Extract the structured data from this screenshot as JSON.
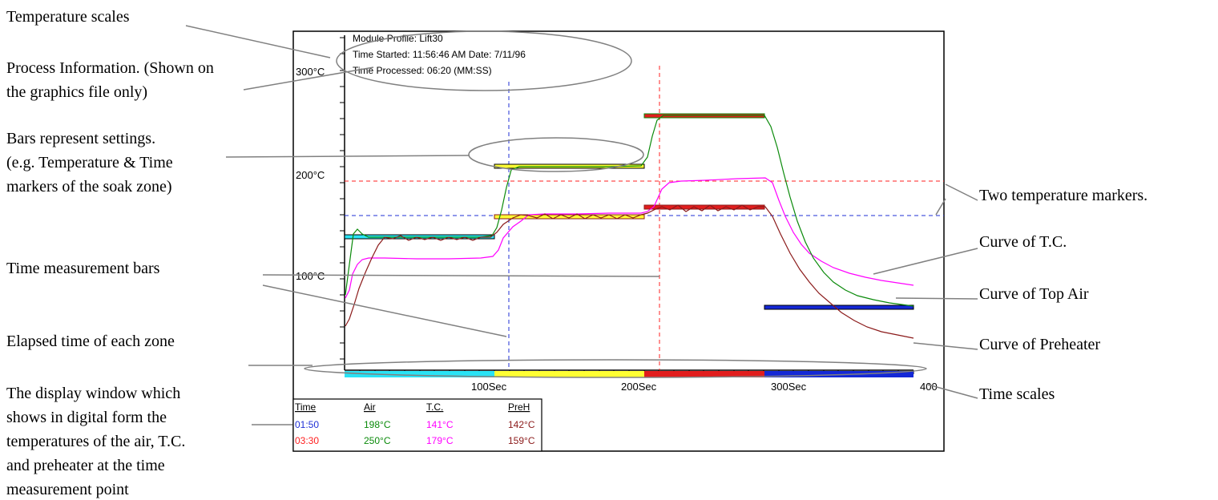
{
  "annotations": {
    "temperature_scales": "Temperature scales",
    "process_info_line1": "Process Information. (Shown on",
    "process_info_line2": "the graphics file only)",
    "bars_line1": "Bars represent settings.",
    "bars_line2": "(e.g. Temperature & Time",
    "bars_line3": "markers of the soak zone)",
    "time_measurement_bars": "Time measurement bars",
    "elapsed_time": "Elapsed time of each zone",
    "display_window_line1": "The display window which",
    "display_window_line2": "shows in digital form the",
    "display_window_line3": "temperatures of  the air, T.C.",
    "display_window_line4": "and preheater at the time",
    "display_window_line5": "measurement point",
    "two_temp_markers": "Two temperature markers.",
    "curve_tc": "Curve of T.C.",
    "curve_top_air": "Curve of Top Air",
    "curve_preheater": "Curve of Preheater",
    "time_scales": "Time scales"
  },
  "process_info": {
    "line1": "Module Profile: Lift30",
    "line2": "Time Started: 11:56:46 AM  Date: 7/11/96",
    "line3": "Time Processed: 06:20 (MM:SS)"
  },
  "y_ticks": [
    "300°C",
    "200°C",
    "100°C"
  ],
  "x_ticks": [
    "100Sec",
    "200Sec",
    "300Sec",
    "400"
  ],
  "readout": {
    "headers": [
      "Time",
      "Air",
      "T.C.",
      "PreH"
    ],
    "rows": [
      {
        "time": "01:50",
        "air": "198°C",
        "tc": "141°C",
        "preh": "142°C"
      },
      {
        "time": "03:30",
        "air": "250°C",
        "tc": "179°C",
        "preh": "159°C"
      }
    ]
  },
  "colors": {
    "air": "#0a8a0a",
    "tc": "#ff00ff",
    "preh": "#8b1a1a",
    "marker1": "#1f2fd6",
    "marker2": "#ff2020",
    "zone1": "#29e3f5",
    "zone2": "#ffff33",
    "zone3": "#e11d1d",
    "zone4": "#1428d6"
  }
}
